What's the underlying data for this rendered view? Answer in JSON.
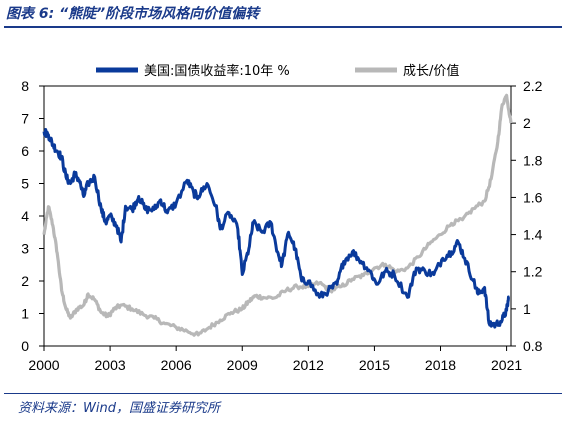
{
  "caption": "图表 6:  “熊陡”阶段市场风格向价值偏转",
  "source": "资料来源：Wind，国盛证券研究所",
  "chart_data": {
    "type": "line",
    "title": "",
    "xlabel": "",
    "ylabel": "",
    "xlim": [
      2000,
      2021.2
    ],
    "x_ticks": [
      2000,
      2003,
      2006,
      2009,
      2012,
      2015,
      2018,
      2021
    ],
    "y_left": {
      "lim": [
        0,
        8
      ],
      "ticks": [
        0,
        1,
        2,
        3,
        4,
        5,
        6,
        7,
        8
      ]
    },
    "y_right": {
      "lim": [
        0.8,
        2.2
      ],
      "ticks": [
        "0.8",
        "1",
        "1.2",
        "1.4",
        "1.6",
        "1.8",
        "2",
        "2.2"
      ]
    },
    "legend_position": "top",
    "grid": false,
    "series": [
      {
        "name": "美国:国债收益率:10年 %",
        "axis": "left",
        "color": "#0a3a9b",
        "points": [
          [
            2000.0,
            6.6
          ],
          [
            2000.2,
            6.5
          ],
          [
            2000.4,
            6.2
          ],
          [
            2000.6,
            6.0
          ],
          [
            2000.8,
            5.8
          ],
          [
            2001.0,
            5.2
          ],
          [
            2001.2,
            5.0
          ],
          [
            2001.4,
            5.3
          ],
          [
            2001.6,
            5.1
          ],
          [
            2001.8,
            4.6
          ],
          [
            2002.0,
            5.0
          ],
          [
            2002.3,
            5.2
          ],
          [
            2002.6,
            4.2
          ],
          [
            2002.8,
            3.8
          ],
          [
            2003.0,
            4.0
          ],
          [
            2003.3,
            3.7
          ],
          [
            2003.5,
            3.2
          ],
          [
            2003.7,
            4.3
          ],
          [
            2004.0,
            4.2
          ],
          [
            2004.3,
            4.6
          ],
          [
            2004.6,
            4.2
          ],
          [
            2005.0,
            4.2
          ],
          [
            2005.3,
            4.5
          ],
          [
            2005.6,
            4.1
          ],
          [
            2006.0,
            4.4
          ],
          [
            2006.5,
            5.1
          ],
          [
            2006.8,
            4.7
          ],
          [
            2007.0,
            4.6
          ],
          [
            2007.4,
            5.0
          ],
          [
            2007.8,
            4.3
          ],
          [
            2008.0,
            3.6
          ],
          [
            2008.4,
            4.1
          ],
          [
            2008.8,
            3.6
          ],
          [
            2009.0,
            2.2
          ],
          [
            2009.3,
            3.0
          ],
          [
            2009.5,
            3.8
          ],
          [
            2009.9,
            3.5
          ],
          [
            2010.3,
            3.8
          ],
          [
            2010.6,
            2.9
          ],
          [
            2010.8,
            2.5
          ],
          [
            2011.1,
            3.5
          ],
          [
            2011.4,
            3.0
          ],
          [
            2011.7,
            2.0
          ],
          [
            2012.0,
            2.0
          ],
          [
            2012.5,
            1.5
          ],
          [
            2012.9,
            1.7
          ],
          [
            2013.3,
            1.9
          ],
          [
            2013.6,
            2.6
          ],
          [
            2014.0,
            2.9
          ],
          [
            2014.4,
            2.6
          ],
          [
            2014.8,
            2.3
          ],
          [
            2015.1,
            1.9
          ],
          [
            2015.5,
            2.3
          ],
          [
            2015.9,
            2.2
          ],
          [
            2016.5,
            1.5
          ],
          [
            2016.9,
            2.4
          ],
          [
            2017.3,
            2.3
          ],
          [
            2017.7,
            2.2
          ],
          [
            2018.1,
            2.7
          ],
          [
            2018.5,
            2.9
          ],
          [
            2018.8,
            3.2
          ],
          [
            2019.1,
            2.7
          ],
          [
            2019.5,
            2.0
          ],
          [
            2019.7,
            1.6
          ],
          [
            2020.0,
            1.8
          ],
          [
            2020.2,
            0.7
          ],
          [
            2020.5,
            0.65
          ],
          [
            2020.8,
            0.8
          ],
          [
            2021.0,
            1.1
          ],
          [
            2021.1,
            1.5
          ]
        ]
      },
      {
        "name": "成长/价值",
        "axis": "right",
        "color": "#b8b8b8",
        "points": [
          [
            2000.0,
            1.4
          ],
          [
            2000.2,
            1.55
          ],
          [
            2000.4,
            1.45
          ],
          [
            2000.6,
            1.3
          ],
          [
            2000.8,
            1.1
          ],
          [
            2001.0,
            1.0
          ],
          [
            2001.2,
            0.95
          ],
          [
            2001.5,
            1.0
          ],
          [
            2001.8,
            1.02
          ],
          [
            2002.0,
            1.08
          ],
          [
            2002.3,
            1.05
          ],
          [
            2002.6,
            0.98
          ],
          [
            2002.9,
            0.96
          ],
          [
            2003.2,
            1.0
          ],
          [
            2003.5,
            1.02
          ],
          [
            2004.0,
            1.0
          ],
          [
            2004.5,
            0.97
          ],
          [
            2005.0,
            0.95
          ],
          [
            2005.5,
            0.92
          ],
          [
            2006.0,
            0.9
          ],
          [
            2006.5,
            0.88
          ],
          [
            2007.0,
            0.86
          ],
          [
            2007.5,
            0.9
          ],
          [
            2008.0,
            0.94
          ],
          [
            2008.5,
            0.98
          ],
          [
            2009.0,
            1.0
          ],
          [
            2009.3,
            1.04
          ],
          [
            2009.6,
            1.07
          ],
          [
            2010.0,
            1.06
          ],
          [
            2010.5,
            1.06
          ],
          [
            2011.0,
            1.1
          ],
          [
            2011.5,
            1.12
          ],
          [
            2012.0,
            1.12
          ],
          [
            2012.5,
            1.14
          ],
          [
            2013.0,
            1.1
          ],
          [
            2013.5,
            1.12
          ],
          [
            2014.0,
            1.16
          ],
          [
            2014.5,
            1.18
          ],
          [
            2015.0,
            1.22
          ],
          [
            2015.5,
            1.24
          ],
          [
            2016.0,
            1.2
          ],
          [
            2016.5,
            1.22
          ],
          [
            2017.0,
            1.28
          ],
          [
            2017.5,
            1.35
          ],
          [
            2018.0,
            1.4
          ],
          [
            2018.5,
            1.46
          ],
          [
            2019.0,
            1.48
          ],
          [
            2019.5,
            1.54
          ],
          [
            2020.0,
            1.58
          ],
          [
            2020.3,
            1.7
          ],
          [
            2020.6,
            1.9
          ],
          [
            2020.8,
            2.1
          ],
          [
            2021.0,
            2.15
          ],
          [
            2021.2,
            2.0
          ]
        ]
      }
    ]
  }
}
